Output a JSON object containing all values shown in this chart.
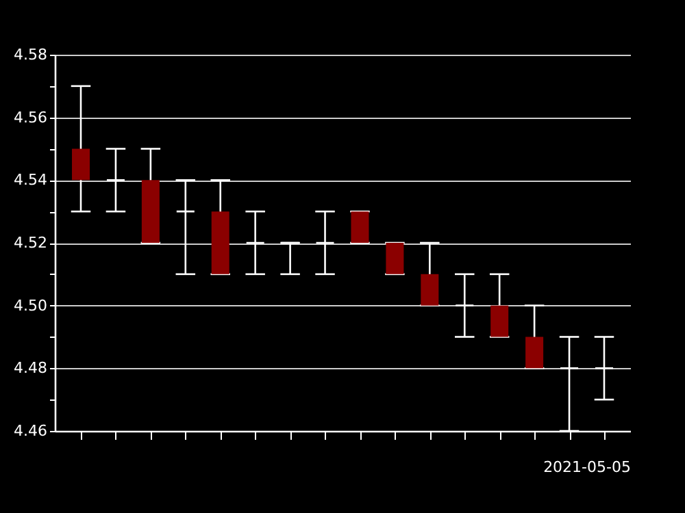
{
  "chart_data": {
    "type": "candlestick",
    "xlabel": "2021-05-05",
    "categories": [
      null,
      null,
      null,
      null,
      null,
      null,
      null,
      null,
      null,
      null,
      null,
      null,
      null,
      null,
      null,
      null
    ],
    "series": [
      {
        "colors": [
          "#8b0000",
          "#ffffff",
          "#8b0000",
          "#ffffff",
          "#8b0000",
          "#ffffff",
          "#ffffff",
          "#ffffff",
          "#8b0000",
          "#8b0000",
          "#8b0000",
          "#ffffff",
          "#8b0000",
          "#8b0000",
          "#ffffff",
          "#ffffff"
        ],
        "ohlc": [
          [
            4.55,
            4.57,
            4.53,
            4.54
          ],
          [
            4.54,
            4.55,
            4.53,
            4.54
          ],
          [
            4.54,
            4.55,
            4.52,
            4.52
          ],
          [
            4.53,
            4.54,
            4.51,
            4.53
          ],
          [
            4.53,
            4.54,
            4.51,
            4.51
          ],
          [
            4.52,
            4.53,
            4.51,
            4.52
          ],
          [
            4.52,
            4.52,
            4.51,
            4.52
          ],
          [
            4.52,
            4.53,
            4.51,
            4.52
          ],
          [
            4.53,
            4.53,
            4.52,
            4.52
          ],
          [
            4.52,
            4.52,
            4.51,
            4.51
          ],
          [
            4.51,
            4.52,
            4.5,
            4.5
          ],
          [
            4.5,
            4.51,
            4.49,
            4.5
          ],
          [
            4.5,
            4.51,
            4.49,
            4.49
          ],
          [
            4.49,
            4.5,
            4.48,
            4.48
          ],
          [
            4.48,
            4.49,
            4.46,
            4.48
          ],
          [
            4.48,
            4.49,
            4.47,
            4.48
          ]
        ]
      }
    ],
    "ylim": [
      4.46,
      4.58
    ],
    "yticks": [
      {
        "value": 4.46,
        "label": "4.46"
      },
      {
        "value": 4.47,
        "label": null
      },
      {
        "value": 4.48,
        "label": "4.48"
      },
      {
        "value": 4.49,
        "label": null
      },
      {
        "value": 4.5,
        "label": "4.50"
      },
      {
        "value": 4.51,
        "label": null
      },
      {
        "value": 4.52,
        "label": "4.52"
      },
      {
        "value": 4.53,
        "label": null
      },
      {
        "value": 4.54,
        "label": "4.54"
      },
      {
        "value": 4.55,
        "label": null
      },
      {
        "value": 4.56,
        "label": "4.56"
      },
      {
        "value": 4.57,
        "label": null
      },
      {
        "value": 4.58,
        "label": "4.58"
      }
    ],
    "grid": "y",
    "tick_labels": "y"
  }
}
